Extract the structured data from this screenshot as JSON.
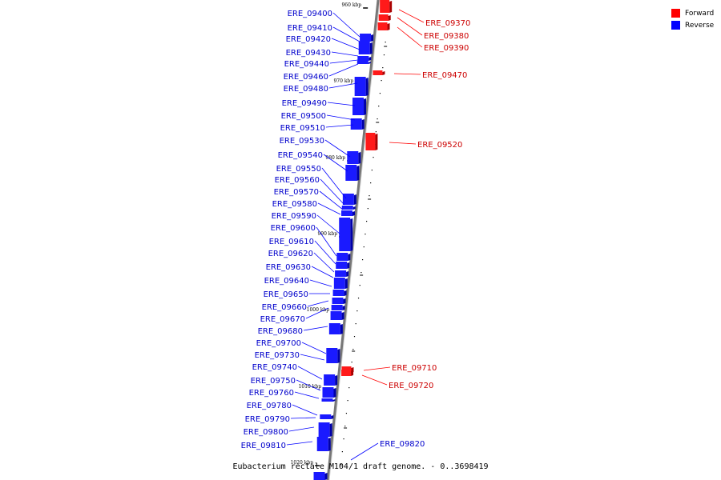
{
  "legend": [
    {
      "label": "Forward",
      "color": "#ff0000"
    },
    {
      "label": "Reverse",
      "color": "#0000ff"
    }
  ],
  "caption": "Eubacterium rectale M104/1 draft genome. - 0..3698419",
  "ticks": [
    {
      "label": "960 kbp",
      "kbp": 960
    },
    {
      "label": "970 kbp",
      "kbp": 970
    },
    {
      "label": "980 kbp",
      "kbp": 980
    },
    {
      "label": "990 kbp",
      "kbp": 990
    },
    {
      "label": "1000 kbp",
      "kbp": 1000
    },
    {
      "label": "1010 kbp",
      "kbp": 1010
    },
    {
      "label": "1020 kbp",
      "kbp": 1020
    }
  ],
  "reverse_genes": [
    "ERE_09400",
    "ERE_09410",
    "ERE_09420",
    "ERE_09430",
    "ERE_09440",
    "ERE_09460",
    "ERE_09480",
    "ERE_09490",
    "ERE_09500",
    "ERE_09510",
    "ERE_09530",
    "ERE_09540",
    "ERE_09550",
    "ERE_09560",
    "ERE_09570",
    "ERE_09580",
    "ERE_09590",
    "ERE_09600",
    "ERE_09610",
    "ERE_09620",
    "ERE_09630",
    "ERE_09640",
    "ERE_09650",
    "ERE_09660",
    "ERE_09670",
    "ERE_09680",
    "ERE_09700",
    "ERE_09730",
    "ERE_09740",
    "ERE_09750",
    "ERE_09760",
    "ERE_09780",
    "ERE_09790",
    "ERE_09800",
    "ERE_09810"
  ],
  "forward_genes": [
    "ERE_09370",
    "ERE_09380",
    "ERE_09390",
    "ERE_09470",
    "ERE_09520",
    "ERE_09710",
    "ERE_09720",
    "ERE_09820"
  ]
}
